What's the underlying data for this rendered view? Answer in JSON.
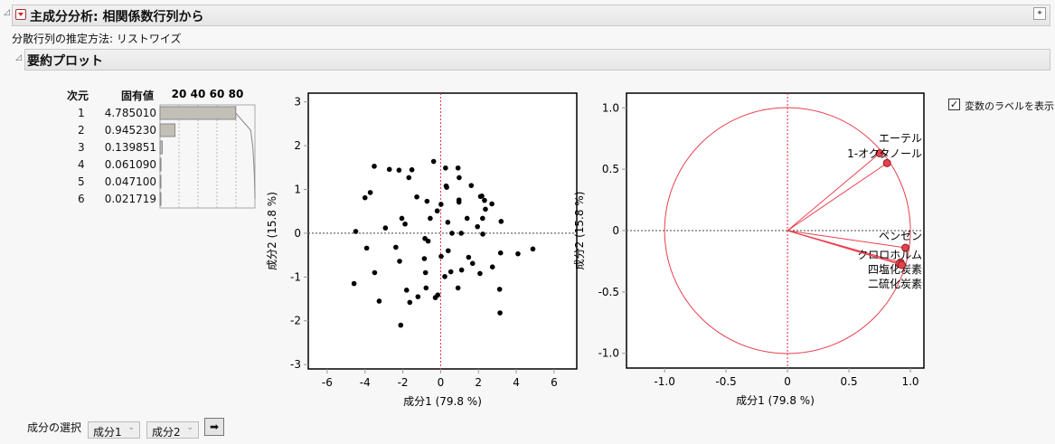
{
  "header": {
    "title": "主成分分析: 相関係数行列から",
    "subtitle": "分散行列の推定方法: リストワイズ"
  },
  "section": {
    "title": "要約プロット"
  },
  "eigen": {
    "col_dim": "次元",
    "col_value": "固有値",
    "axis_ticks": [
      "20",
      "40",
      "60",
      "80"
    ],
    "rows": [
      {
        "dim": "1",
        "value": "4.785010",
        "percent": 79.75
      },
      {
        "dim": "2",
        "value": "0.945230",
        "percent": 15.75
      },
      {
        "dim": "3",
        "value": "0.139851",
        "percent": 2.33
      },
      {
        "dim": "4",
        "value": "0.061090",
        "percent": 1.02
      },
      {
        "dim": "5",
        "value": "0.047100",
        "percent": 0.79
      },
      {
        "dim": "6",
        "value": "0.021719",
        "percent": 0.36
      }
    ],
    "cumulative": [
      79.75,
      95.5,
      97.83,
      98.85,
      99.64,
      100
    ]
  },
  "chart_data": [
    {
      "type": "scatter",
      "xlabel": "成分1 (79.8 %)",
      "ylabel": "成分2 (15.8 %)",
      "xlim": [
        -7,
        7.2
      ],
      "ylim": [
        -3.1,
        3.2
      ],
      "xticks": [
        "-6",
        "-4",
        "-2",
        "0",
        "2",
        "4",
        "6"
      ],
      "yticks": [
        "-3",
        "-2",
        "-1",
        "0",
        "1",
        "2",
        "3"
      ],
      "points": [
        [
          -3.51,
          1.53
        ],
        [
          -2.71,
          1.46
        ],
        [
          -2.2,
          1.44
        ],
        [
          -1.52,
          1.45
        ],
        [
          -1.68,
          1.27
        ],
        [
          -0.37,
          1.64
        ],
        [
          0.26,
          1.49
        ],
        [
          0.92,
          1.49
        ],
        [
          0.98,
          1.27
        ],
        [
          0.29,
          1.08
        ],
        [
          0.32,
          1.05
        ],
        [
          1.62,
          1.09
        ],
        [
          -3.72,
          0.93
        ],
        [
          -4.0,
          0.81
        ],
        [
          -1.26,
          0.83
        ],
        [
          -0.72,
          0.73
        ],
        [
          0.02,
          0.66
        ],
        [
          -0.18,
          0.51
        ],
        [
          0.97,
          0.76
        ],
        [
          0.97,
          0.71
        ],
        [
          2.11,
          0.84
        ],
        [
          2.18,
          0.85
        ],
        [
          2.32,
          0.75
        ],
        [
          2.71,
          0.67
        ],
        [
          2.37,
          0.55
        ],
        [
          -2.05,
          0.34
        ],
        [
          -1.88,
          0.21
        ],
        [
          -0.55,
          0.34
        ],
        [
          0.38,
          0.25
        ],
        [
          1.4,
          0.34
        ],
        [
          2.22,
          0.34
        ],
        [
          3.2,
          0.27
        ],
        [
          1.95,
          0.15
        ],
        [
          -2.92,
          0.12
        ],
        [
          -4.49,
          0.04
        ],
        [
          0.6,
          0
        ],
        [
          1.09,
          0
        ],
        [
          2.23,
          -0.02
        ],
        [
          -0.83,
          -0.12
        ],
        [
          -0.66,
          -0.18
        ],
        [
          -3.91,
          -0.34
        ],
        [
          -2.37,
          -0.32
        ],
        [
          0.4,
          -0.4
        ],
        [
          0.03,
          -0.53
        ],
        [
          -0.86,
          -0.58
        ],
        [
          -2.17,
          -0.64
        ],
        [
          1.48,
          -0.55
        ],
        [
          1.69,
          -0.69
        ],
        [
          3.17,
          -0.45
        ],
        [
          4.09,
          -0.47
        ],
        [
          4.88,
          -0.36
        ],
        [
          2.74,
          -0.77
        ],
        [
          2.08,
          -0.92
        ],
        [
          1.11,
          -0.84
        ],
        [
          0.54,
          -0.88
        ],
        [
          0.22,
          -0.99
        ],
        [
          -0.8,
          -0.9
        ],
        [
          -3.49,
          -0.9
        ],
        [
          -4.58,
          -1.15
        ],
        [
          -1.8,
          -1.3
        ],
        [
          -0.77,
          -1.25
        ],
        [
          0.92,
          -1.25
        ],
        [
          3.12,
          -1.28
        ],
        [
          -1.2,
          -1.45
        ],
        [
          -0.28,
          -1.47
        ],
        [
          -0.15,
          -1.41
        ],
        [
          -3.25,
          -1.55
        ],
        [
          -1.63,
          -1.58
        ],
        [
          3.14,
          -1.82
        ],
        [
          -2.11,
          -2.1
        ]
      ]
    },
    {
      "type": "loading",
      "xlabel": "成分1 (79.8 %)",
      "ylabel": "成分2 (15.8 %)",
      "xlim": [
        -1.31,
        1.11
      ],
      "ylim": [
        -1.12,
        1.12
      ],
      "xticks": [
        "-1.0",
        "-0.5",
        "0",
        "0.5",
        "1.0"
      ],
      "yticks": [
        "-1.0",
        "-0.5",
        "0",
        "0.5",
        "1.0"
      ],
      "vectors": [
        {
          "label": "エーテル",
          "x": 0.75,
          "y": 0.63
        },
        {
          "label": "1-オクタノール",
          "x": 0.81,
          "y": 0.55
        },
        {
          "label": "ベンゼン",
          "x": 0.96,
          "y": -0.14
        },
        {
          "label": "クロロホルム",
          "x": 0.92,
          "y": -0.26
        },
        {
          "label": "四塩化炭素",
          "x": 0.91,
          "y": -0.27
        },
        {
          "label": "二硫化炭素",
          "x": 0.93,
          "y": -0.28
        }
      ],
      "color": "#e8404f"
    }
  ],
  "options": {
    "show_labels": "変数のラベルを表示",
    "show_labels_checked": true
  },
  "bottom": {
    "label": "成分の選択",
    "sel1": "成分1",
    "sel2": "成分2"
  }
}
